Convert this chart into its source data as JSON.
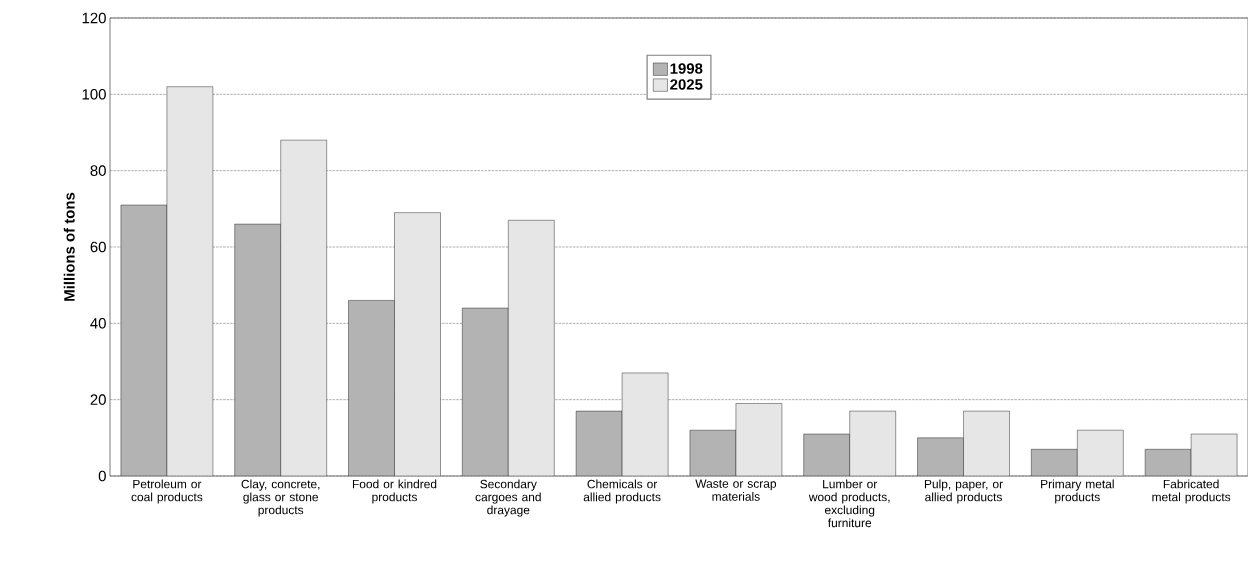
{
  "chart_data": {
    "type": "bar",
    "ylabel": "Millions of tons",
    "categories": [
      "Petroleum or coal products",
      "Clay, concrete, glass or stone products",
      "Food or kindred products",
      "Secondary cargoes and drayage",
      "Chemicals or allied products",
      "Waste or scrap materials",
      "Lumber or wood products, excluding furniture",
      "Pulp, paper, or allied products",
      "Primary metal products",
      "Fabricated metal products"
    ],
    "series": [
      {
        "name": "1998",
        "color": "#b3b3b3",
        "values": [
          71,
          66,
          46,
          44,
          17,
          12,
          11,
          10,
          7,
          7
        ]
      },
      {
        "name": "2025",
        "color": "#e6e6e6",
        "values": [
          102,
          88,
          69,
          67,
          27,
          19,
          17,
          17,
          12,
          11
        ]
      }
    ],
    "ylim": [
      0,
      120
    ],
    "yticks": [
      0,
      20,
      40,
      60,
      80,
      100,
      120
    ],
    "grid": "y",
    "legend": "top"
  }
}
